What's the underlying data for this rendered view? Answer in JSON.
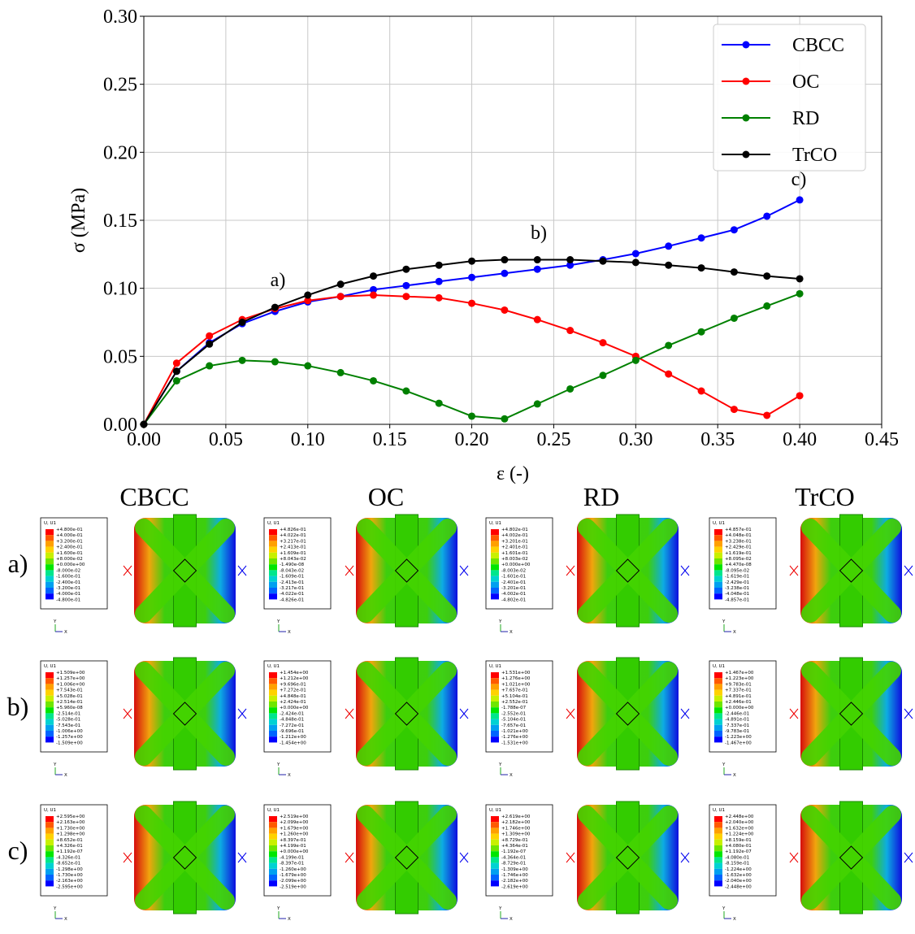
{
  "chart_data": {
    "type": "line",
    "xlabel": "ε (-)",
    "ylabel": "σ (MPa)",
    "x": [
      0.0,
      0.02,
      0.04,
      0.06,
      0.08,
      0.1,
      0.12,
      0.14,
      0.16,
      0.18,
      0.2,
      0.22,
      0.24,
      0.26,
      0.28,
      0.3,
      0.32,
      0.34,
      0.36,
      0.38,
      0.4
    ],
    "series": [
      {
        "name": "CBCC",
        "color": "#0000ff",
        "values": [
          0,
          0.039,
          0.06,
          0.074,
          0.083,
          0.09,
          0.094,
          0.099,
          0.102,
          0.105,
          0.108,
          0.111,
          0.114,
          0.117,
          0.121,
          0.1255,
          0.131,
          0.137,
          0.143,
          0.153,
          0.165
        ]
      },
      {
        "name": "OC",
        "color": "#ff0000",
        "values": [
          0,
          0.045,
          0.065,
          0.077,
          0.085,
          0.091,
          0.094,
          0.095,
          0.094,
          0.093,
          0.089,
          0.084,
          0.077,
          0.069,
          0.06,
          0.05,
          0.037,
          0.0245,
          0.011,
          0.0066,
          0.021
        ]
      },
      {
        "name": "RD",
        "color": "#008000",
        "values": [
          0,
          0.032,
          0.043,
          0.047,
          0.046,
          0.043,
          0.038,
          0.032,
          0.0245,
          0.0155,
          0.006,
          0.004,
          0.015,
          0.026,
          0.036,
          0.047,
          0.058,
          0.068,
          0.078,
          0.087,
          0.096
        ]
      },
      {
        "name": "TrCO",
        "color": "#000000",
        "values": [
          0,
          0.039,
          0.059,
          0.075,
          0.086,
          0.095,
          0.103,
          0.109,
          0.114,
          0.117,
          0.12,
          0.121,
          0.121,
          0.121,
          0.12,
          0.119,
          0.117,
          0.115,
          0.112,
          0.109,
          0.107
        ]
      }
    ],
    "xlim": [
      0,
      0.45
    ],
    "xticks": [
      {
        "value": 0,
        "label": "0.00"
      },
      {
        "value": 0.05,
        "label": "0.05"
      },
      {
        "value": 0.1,
        "label": "0.10"
      },
      {
        "value": 0.15,
        "label": "0.15"
      },
      {
        "value": 0.2,
        "label": "0.20"
      },
      {
        "value": 0.25,
        "label": "0.25"
      },
      {
        "value": 0.3,
        "label": "0.30"
      },
      {
        "value": 0.35,
        "label": "0.35"
      },
      {
        "value": 0.4,
        "label": "0.40"
      },
      {
        "value": 0.45,
        "label": "0.45"
      }
    ],
    "ylim": [
      0,
      0.3
    ],
    "yticks": [
      {
        "value": 0,
        "label": "0.00"
      },
      {
        "value": 0.05,
        "label": "0.05"
      },
      {
        "value": 0.1,
        "label": "0.10"
      },
      {
        "value": 0.15,
        "label": "0.15"
      },
      {
        "value": 0.2,
        "label": "0.20"
      },
      {
        "value": 0.25,
        "label": "0.25"
      },
      {
        "value": 0.3,
        "label": "0.30"
      }
    ],
    "grid": true,
    "legend": "upper right",
    "annotations": [
      "a)",
      "b)",
      "c)"
    ]
  },
  "panel": {
    "columns": [
      "CBCC",
      "OC",
      "RD",
      "TrCO"
    ],
    "rows": [
      "a)",
      "b)",
      "c)"
    ],
    "contour_title": "U, U1",
    "triad_y": "Y",
    "triad_x": "X",
    "legends": [
      [
        [
          "+4.800e-01",
          "+4.000e-01",
          "+3.200e-01",
          "+2.400e-01",
          "+1.600e-01",
          "+8.000e-02",
          "+0.000e+00",
          "-8.000e-02",
          "-1.600e-01",
          "-2.400e-01",
          "-3.200e-01",
          "-4.000e-01",
          "-4.800e-01"
        ],
        [
          "+4.826e-01",
          "+4.022e-01",
          "+3.217e-01",
          "+2.413e-01",
          "+1.609e-01",
          "+8.043e-02",
          "-1.490e-08",
          "-8.043e-02",
          "-1.609e-01",
          "-2.413e-01",
          "-3.217e-01",
          "-4.022e-01",
          "-4.826e-01"
        ],
        [
          "+4.802e-01",
          "+4.002e-01",
          "+3.201e-01",
          "+2.401e-01",
          "+1.601e-01",
          "+8.003e-02",
          "+0.000e+00",
          "-8.003e-02",
          "-1.601e-01",
          "-2.401e-01",
          "-3.201e-01",
          "-4.002e-01",
          "-4.802e-01"
        ],
        [
          "+4.857e-01",
          "+4.048e-01",
          "+3.238e-01",
          "+2.429e-01",
          "+1.619e-01",
          "+8.095e-02",
          "+4.470e-08",
          "-8.095e-02",
          "-1.619e-01",
          "-2.429e-01",
          "-3.238e-01",
          "-4.048e-01",
          "-4.857e-01"
        ]
      ],
      [
        [
          "+1.509e+00",
          "+1.257e+00",
          "+1.006e+00",
          "+7.543e-01",
          "+5.028e-01",
          "+2.514e-01",
          "+5.960e-08",
          "-2.514e-01",
          "-5.028e-01",
          "-7.543e-01",
          "-1.006e+00",
          "-1.257e+00",
          "-1.509e+00"
        ],
        [
          "+1.454e+00",
          "+1.212e+00",
          "+9.696e-01",
          "+7.272e-01",
          "+4.848e-01",
          "+2.424e-01",
          "+0.000e+00",
          "-2.424e-01",
          "-4.848e-01",
          "-7.272e-01",
          "-9.696e-01",
          "-1.212e+00",
          "-1.454e+00"
        ],
        [
          "+1.531e+00",
          "+1.276e+00",
          "+1.021e+00",
          "+7.657e-01",
          "+5.104e-01",
          "+2.552e-01",
          "-1.788e-07",
          "-2.552e-01",
          "-5.104e-01",
          "-7.657e-01",
          "-1.021e+00",
          "-1.276e+00",
          "-1.531e+00"
        ],
        [
          "+1.467e+00",
          "+1.223e+00",
          "+9.783e-01",
          "+7.337e-01",
          "+4.891e-01",
          "+2.446e-01",
          "+0.000e+00",
          "-2.446e-01",
          "-4.891e-01",
          "-7.337e-01",
          "-9.783e-01",
          "-1.223e+00",
          "-1.467e+00"
        ]
      ],
      [
        [
          "+2.595e+00",
          "+2.163e+00",
          "+1.730e+00",
          "+1.298e+00",
          "+8.652e-01",
          "+4.326e-01",
          "+1.192e-07",
          "-4.326e-01",
          "-8.652e-01",
          "-1.298e+00",
          "-1.730e+00",
          "-2.163e+00",
          "-2.595e+00"
        ],
        [
          "+2.519e+00",
          "+2.099e+00",
          "+1.679e+00",
          "+1.260e+00",
          "+8.397e-01",
          "+4.199e-01",
          "+0.000e+00",
          "-4.199e-01",
          "-8.397e-01",
          "-1.260e+00",
          "-1.679e+00",
          "-2.099e+00",
          "-2.519e+00"
        ],
        [
          "+2.619e+00",
          "+2.182e+00",
          "+1.746e+00",
          "+1.309e+00",
          "+8.729e-01",
          "+4.364e-01",
          "-1.192e-07",
          "-4.364e-01",
          "-8.729e-01",
          "-1.309e+00",
          "-1.746e+00",
          "-2.182e+00",
          "-2.619e+00"
        ],
        [
          "+2.448e+00",
          "+2.040e+00",
          "+1.632e+00",
          "+1.224e+00",
          "+8.159e-01",
          "+4.080e-01",
          "+1.192e-07",
          "-4.080e-01",
          "-8.159e-01",
          "-1.224e+00",
          "-1.632e+00",
          "-2.040e+00",
          "-2.448e+00"
        ]
      ]
    ]
  }
}
